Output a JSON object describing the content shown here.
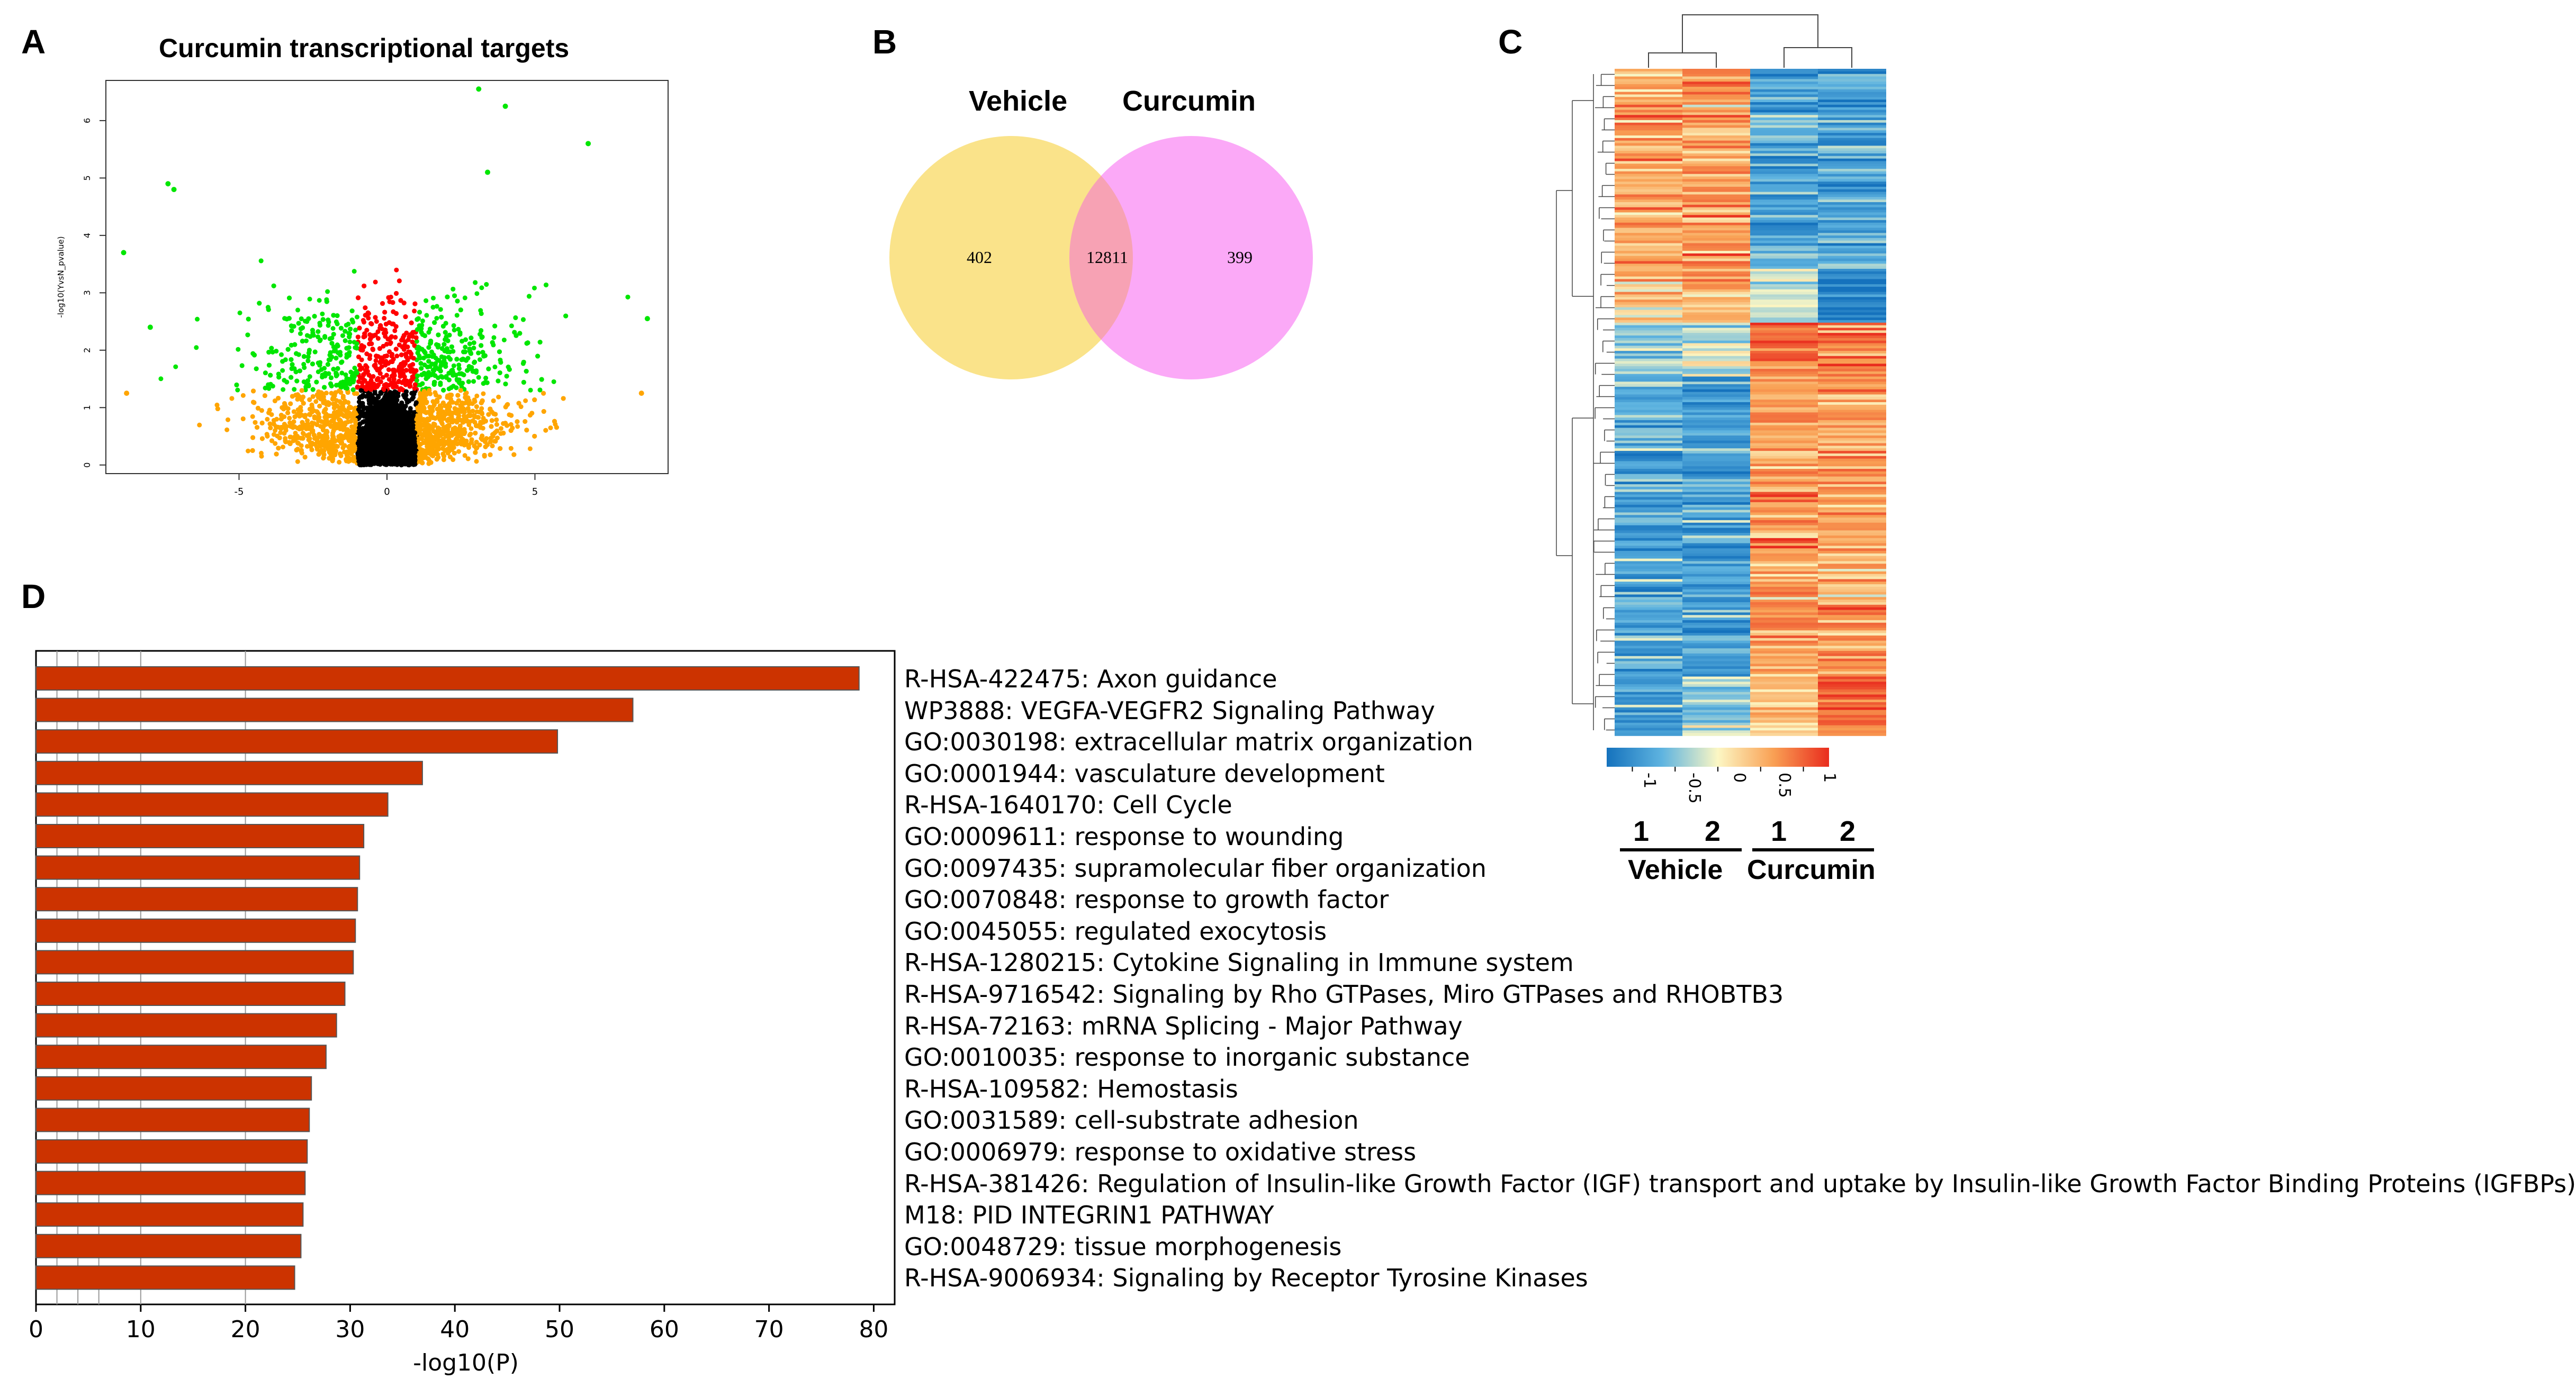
{
  "panels": {
    "a": "A",
    "b": "B",
    "c": "C",
    "d": "D"
  },
  "chart_data": [
    {
      "type": "scatter",
      "panel": "A",
      "title": "Curcumin transcriptional targets",
      "xlabel": "",
      "ylabel": "-log10(YvsN_pvalue)",
      "xlim": [
        -9.5,
        9.5
      ],
      "ylim": [
        -0.15,
        6.7
      ],
      "xticks": [
        "-5",
        "0",
        "5"
      ],
      "yticks": [
        "0",
        "1",
        "2",
        "3",
        "4",
        "5",
        "6"
      ],
      "categories": [
        "not significant",
        "low fold change, significant",
        "large fold change, significant",
        "large fold change, not significant"
      ],
      "colors": {
        "ns": "#000000",
        "sig_lowfc": "#ff0000",
        "sig_highfc": "#00e600",
        "highfc_ns": "#ffa500"
      },
      "thresholds": {
        "fold_change": 1,
        "neg_log10_p": 1.3
      },
      "highlight_points": [
        {
          "x": 3.1,
          "y": 6.55
        },
        {
          "x": 4.0,
          "y": 6.25
        },
        {
          "x": 6.8,
          "y": 5.6
        },
        {
          "x": 3.4,
          "y": 5.1
        },
        {
          "x": -7.4,
          "y": 4.9
        },
        {
          "x": -7.2,
          "y": 4.8
        },
        {
          "x": -8.9,
          "y": 3.7
        },
        {
          "x": 8.8,
          "y": 2.55
        },
        {
          "x": -8.0,
          "y": 2.4
        },
        {
          "x": -8.8,
          "y": 1.25
        },
        {
          "x": 8.6,
          "y": 1.25
        }
      ]
    },
    {
      "type": "venn",
      "panel": "B",
      "sets": [
        "Vehicle",
        "Curcumin"
      ],
      "only_vehicle": 402,
      "intersection": 12811,
      "only_curcumin": 399,
      "colors": {
        "vehicle": "#fae38a",
        "curcumin": "#fba9f7",
        "overlap": "#f7a2b4"
      }
    },
    {
      "type": "heatmap",
      "panel": "C",
      "colorbar_ticks": [
        "-1",
        "-0.5",
        "0",
        "0.5",
        "1"
      ],
      "colorbar_range": [
        -1.3,
        1.3
      ],
      "colors": {
        "low": "#1f82c8",
        "mid": "#fbf5c0",
        "high": "#ea2e1f"
      },
      "columns": [
        "1",
        "2",
        "1",
        "2"
      ],
      "groups": [
        "Vehicle",
        "Curcumin"
      ],
      "blocks": [
        {
          "share": 0.3,
          "means": [
            0.55,
            0.6,
            -0.75,
            -0.8
          ]
        },
        {
          "share": 0.08,
          "means": [
            0.2,
            0.45,
            -0.2,
            -1.1
          ]
        },
        {
          "share": 0.08,
          "means": [
            -0.4,
            -0.2,
            1.0,
            0.8
          ]
        },
        {
          "share": 0.45,
          "means": [
            -0.75,
            -0.8,
            0.6,
            0.55
          ]
        },
        {
          "share": 0.09,
          "means": [
            -0.8,
            -0.3,
            0.3,
            1.0
          ]
        }
      ]
    },
    {
      "type": "bar",
      "panel": "D",
      "orientation": "horizontal",
      "xlabel": "-log10(P)",
      "xlim": [
        0,
        82
      ],
      "xticks": [
        "0",
        "10",
        "20",
        "30",
        "40",
        "50",
        "60",
        "70",
        "80"
      ],
      "gridlines": [
        2,
        4,
        6,
        10,
        20
      ],
      "bar_color": "#cc3300",
      "categories": [
        "R-HSA-422475: Axon guidance",
        "WP3888: VEGFA-VEGFR2 Signaling Pathway",
        "GO:0030198: extracellular matrix organization",
        "GO:0001944: vasculature development",
        "R-HSA-1640170: Cell Cycle",
        "GO:0009611: response to wounding",
        "GO:0097435: supramolecular fiber organization",
        "GO:0070848: response to growth factor",
        "GO:0045055: regulated exocytosis",
        "R-HSA-1280215: Cytokine Signaling in Immune system",
        "R-HSA-9716542: Signaling by Rho GTPases, Miro GTPases and RHOBTB3",
        "R-HSA-72163: mRNA Splicing - Major Pathway",
        "GO:0010035: response to inorganic substance",
        "R-HSA-109582: Hemostasis",
        "GO:0031589: cell-substrate adhesion",
        "GO:0006979: response to oxidative stress",
        "R-HSA-381426: Regulation of Insulin-like Growth Factor (IGF) transport and uptake by Insulin-like Growth Factor Binding Proteins (IGFBPs)",
        "M18: PID INTEGRIN1 PATHWAY",
        "GO:0048729: tissue morphogenesis",
        "R-HSA-9006934: Signaling by Receptor Tyrosine Kinases"
      ],
      "values": [
        78.6,
        57.0,
        49.8,
        36.9,
        33.6,
        31.3,
        30.9,
        30.7,
        30.5,
        30.3,
        29.5,
        28.7,
        27.7,
        26.3,
        26.1,
        25.9,
        25.7,
        25.5,
        25.3,
        24.7
      ]
    }
  ]
}
